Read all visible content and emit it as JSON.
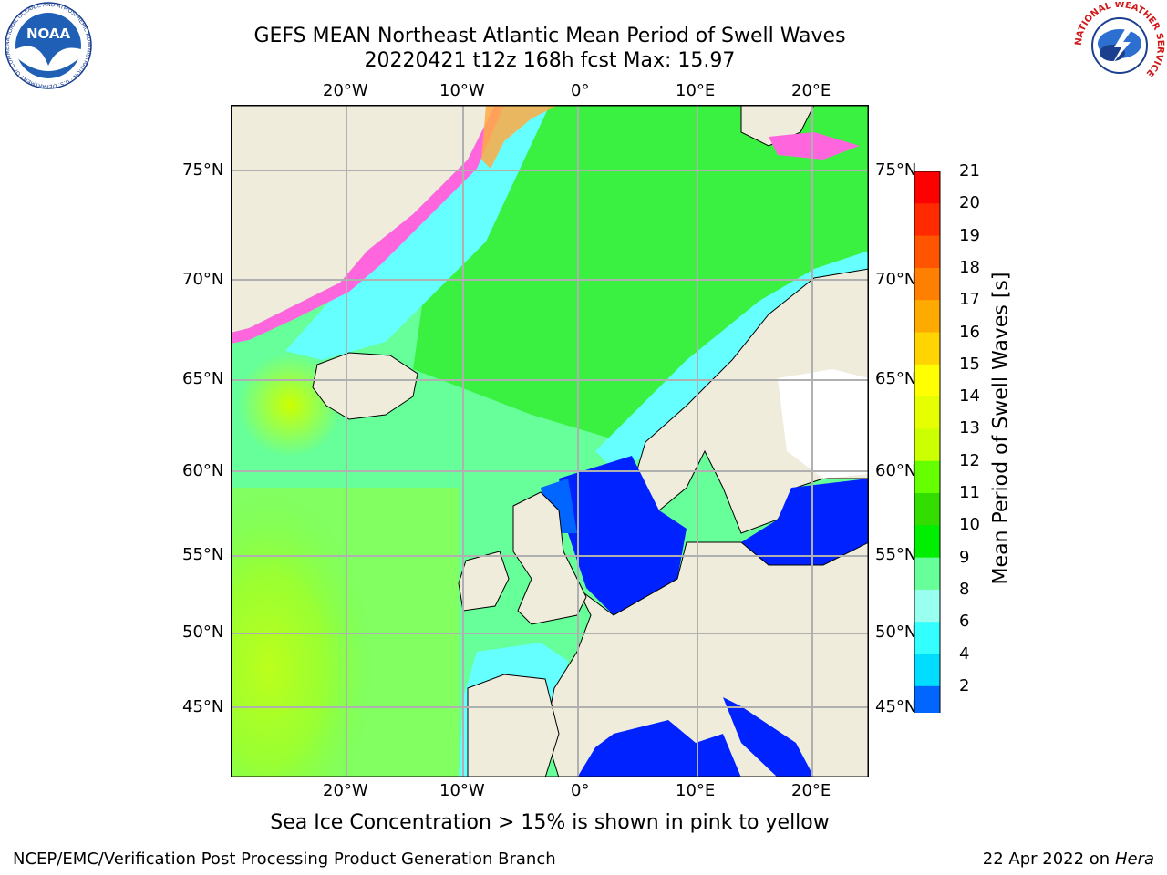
{
  "title": {
    "line1": "GEFS MEAN Northeast Atlantic Mean Period of Swell Waves",
    "line2": "20220421 t12z 168h fcst   Max: 15.97"
  },
  "map": {
    "lon_labels": [
      "20°W",
      "10°W",
      "0°",
      "10°E",
      "20°E"
    ],
    "lat_labels": [
      "75°N",
      "70°N",
      "65°N",
      "60°N",
      "55°N",
      "50°N",
      "45°N"
    ],
    "colors": {
      "land": "#efecdc",
      "ice_pink": "#ff66dd",
      "sea_background": "#66ff99"
    }
  },
  "colorbar": {
    "label": "Mean Period of Swell Waves [s]",
    "ticks": [
      "21",
      "20",
      "19",
      "18",
      "17",
      "16",
      "15",
      "14",
      "13",
      "12",
      "11",
      "10",
      "9",
      "8",
      "6",
      "4",
      "2"
    ],
    "colors": [
      "#ff0000",
      "#ff2a00",
      "#ff5500",
      "#ff7f00",
      "#ffaa00",
      "#ffd400",
      "#ffff00",
      "#e5ff00",
      "#ccff00",
      "#66ff00",
      "#33dd00",
      "#00ee00",
      "#66ff99",
      "#99ffee",
      "#33ffff",
      "#00ddff",
      "#0066ff"
    ],
    "extend_color": "#0022ff"
  },
  "note": "Sea Ice Concentration > 15% is shown in pink to yellow",
  "footer": {
    "left": "NCEP/EMC/Verification Post Processing Product Generation Branch",
    "date": "22 Apr 2022 on ",
    "machine": "Hera"
  },
  "logos": {
    "left_text": "NOAA",
    "left_ring": "NATIONAL OCEANIC AND ATMOSPHERIC ADMINISTRATION · U.S. DEPARTMENT OF COMMERCE",
    "right_ring": "NATIONAL WEATHER SERVICE"
  }
}
